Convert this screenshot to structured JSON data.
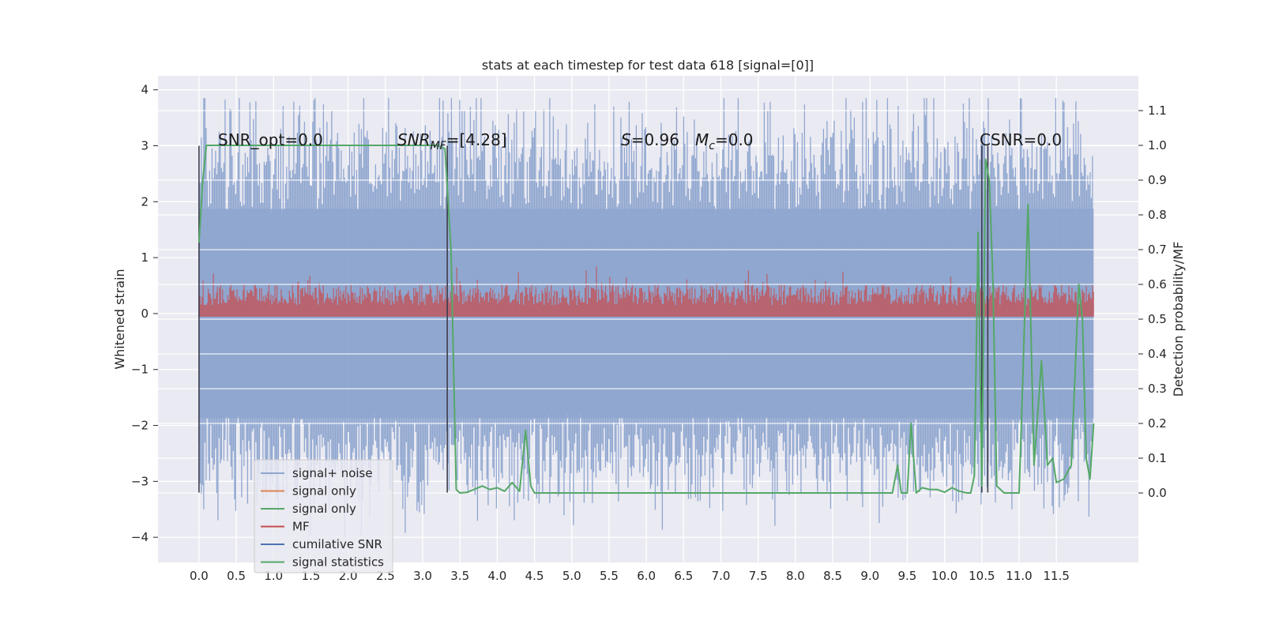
{
  "chart_data": {
    "type": "line",
    "title": "stats at each timestep for test data 618 [signal=[0]]",
    "ylabel_left": "Whitened strain",
    "ylabel_right": "Detection probability/MF",
    "xlim": [
      -0.55,
      12.6
    ],
    "ylim_left": [
      -4.45,
      4.25
    ],
    "ylim_right": [
      -0.2,
      1.2
    ],
    "grid": true,
    "legend_placement": "lower-left",
    "x_ticks": [
      "0.0",
      "0.5",
      "1.0",
      "1.5",
      "2.0",
      "2.5",
      "3.0",
      "3.5",
      "4.0",
      "4.5",
      "5.0",
      "5.5",
      "6.0",
      "6.5",
      "7.0",
      "7.5",
      "8.0",
      "8.5",
      "9.0",
      "9.5",
      "10.0",
      "10.5",
      "11.0",
      "11.5"
    ],
    "y_ticks_left": [
      "4",
      "3",
      "2",
      "1",
      "0",
      "−1",
      "−2",
      "−3",
      "−4"
    ],
    "y_ticks_right": [
      "1.1",
      "1.0",
      "0.9",
      "0.8",
      "0.7",
      "0.6",
      "0.5",
      "0.4",
      "0.3",
      "0.2",
      "0.1",
      "0.0"
    ],
    "annotations": [
      {
        "id": "snr_opt",
        "text": "SNR_opt=0.0"
      },
      {
        "id": "snr_mf",
        "text": "SNR_MF=[4.28]"
      },
      {
        "id": "s_val",
        "text": "S=0.96"
      },
      {
        "id": "mc_val",
        "text": "M_c=0.0"
      },
      {
        "id": "csnr",
        "text": "CSNR=0.0"
      }
    ],
    "vertical_markers_x": [
      0.0,
      3.33,
      10.5,
      10.58
    ],
    "series": [
      {
        "name": "signal+ noise",
        "color": "#8fa6cf",
        "axis": "left",
        "kind": "noise",
        "x_range": [
          0.0,
          12.0
        ],
        "envelope": [
          -2.6,
          2.6
        ]
      },
      {
        "name": "signal only",
        "color": "#dd8452",
        "axis": "left",
        "kind": "flat",
        "values": [
          0,
          0
        ]
      },
      {
        "name": "signal only",
        "color": "#55a868",
        "axis": "left",
        "kind": "flat",
        "values": [
          0,
          0
        ]
      },
      {
        "name": "MF",
        "color": "#c44e52",
        "axis": "right",
        "kind": "noise",
        "x_range": [
          0.0,
          12.0
        ],
        "envelope": [
          0.52,
          0.62
        ]
      },
      {
        "name": "cumilative SNR",
        "color": "#4c72b0",
        "axis": "right",
        "kind": "flat",
        "values": [
          0,
          0
        ]
      },
      {
        "name": "signal statistics",
        "color": "#55a868",
        "axis": "right",
        "kind": "line",
        "x": [
          0.0,
          0.05,
          0.1,
          0.2,
          0.5,
          1.0,
          2.0,
          3.0,
          3.2,
          3.3,
          3.38,
          3.45,
          3.5,
          3.6,
          3.8,
          3.9,
          4.0,
          4.1,
          4.2,
          4.3,
          4.38,
          4.45,
          4.5,
          5.0,
          6.0,
          7.0,
          8.0,
          9.0,
          9.3,
          9.37,
          9.42,
          9.5,
          9.55,
          9.62,
          9.7,
          9.8,
          9.9,
          10.0,
          10.1,
          10.2,
          10.3,
          10.35,
          10.4,
          10.45,
          10.5,
          10.55,
          10.6,
          10.65,
          10.7,
          10.8,
          10.9,
          11.0,
          11.05,
          11.12,
          11.2,
          11.3,
          11.38,
          11.45,
          11.5,
          11.6,
          11.7,
          11.8,
          11.85,
          11.9,
          11.95,
          12.0
        ],
        "y": [
          0.72,
          0.9,
          1.0,
          1.0,
          1.0,
          1.0,
          1.0,
          1.0,
          1.0,
          0.99,
          0.7,
          0.01,
          0.0,
          0.002,
          0.02,
          0.01,
          0.015,
          0.005,
          0.03,
          0.005,
          0.18,
          0.02,
          0.0,
          0.0,
          0.0,
          0.0,
          0.0,
          0.0,
          0.0,
          0.08,
          0.0,
          0.0,
          0.2,
          0.0,
          0.015,
          0.01,
          0.01,
          0.002,
          0.015,
          0.005,
          0.0,
          0.0,
          0.05,
          0.75,
          0.02,
          0.96,
          0.9,
          0.6,
          0.02,
          0.0,
          0.0,
          0.0,
          0.33,
          0.83,
          0.08,
          0.38,
          0.08,
          0.1,
          0.03,
          0.04,
          0.08,
          0.6,
          0.5,
          0.1,
          0.04,
          0.2
        ]
      }
    ]
  }
}
